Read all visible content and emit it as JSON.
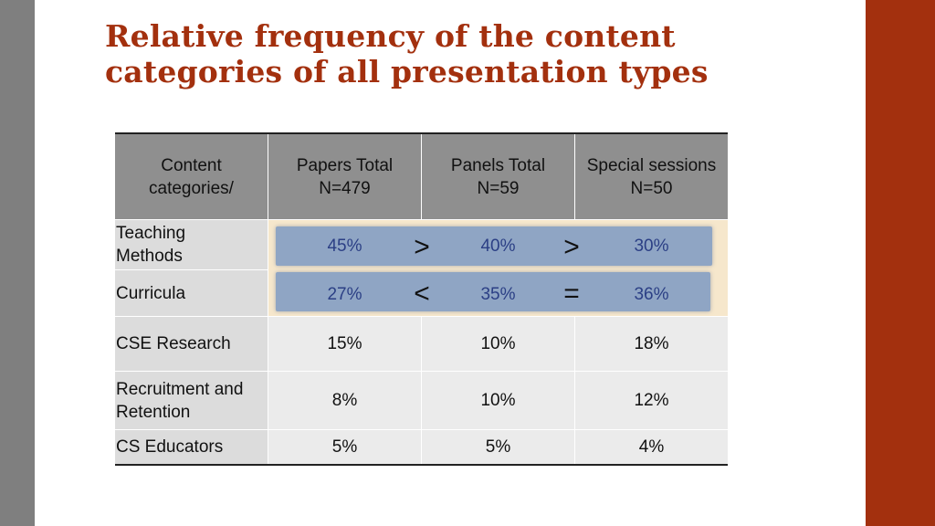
{
  "title": {
    "line1": "Relative frequency of the content",
    "line2": "categories of all presentation types"
  },
  "table": {
    "headers": [
      [
        "Content",
        "categories/"
      ],
      [
        "Papers Total",
        "N=479"
      ],
      [
        "Panels Total",
        "N=59"
      ],
      [
        "Special sessions",
        "N=50"
      ]
    ],
    "rows": [
      {
        "label": [
          "Teaching",
          "Methods"
        ],
        "values": [
          "45%",
          "40%",
          "30%"
        ],
        "comparisons": [
          ">",
          ">"
        ]
      },
      {
        "label": [
          "Curricula"
        ],
        "values": [
          "27%",
          "35%",
          "36%"
        ],
        "comparisons": [
          "<",
          "="
        ]
      },
      {
        "label": [
          "CSE Research"
        ],
        "values": [
          "15%",
          "10%",
          "18%"
        ]
      },
      {
        "label": [
          "Recruitment and",
          "Retention"
        ],
        "values": [
          "8%",
          "10%",
          "12%"
        ]
      },
      {
        "label": [
          "CS Educators"
        ],
        "values": [
          "5%",
          "5%",
          "4%"
        ]
      }
    ]
  },
  "colors": {
    "accent": "#a3300e",
    "side_gray": "#7f7f7f",
    "header_gray": "#8f8f8f",
    "highlight_blue": "#8fa5c4",
    "highlight_text": "#2b3f85",
    "highlight_glow": "#f6e7cc"
  }
}
